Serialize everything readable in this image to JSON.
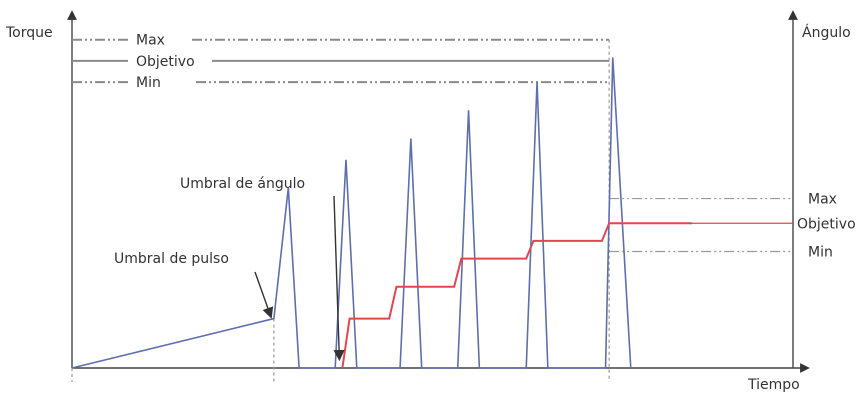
{
  "chart_data": {
    "type": "line",
    "title": "",
    "xlabel": "Tiempo",
    "ylabel_left": "Torque",
    "ylabel_right": "Ángulo",
    "axis_ranges": {
      "x": [
        0,
        100
      ],
      "y_left": [
        0,
        100
      ],
      "y_right": [
        0,
        100
      ]
    },
    "grid": false,
    "torque_levels": [
      {
        "label": "Max",
        "value": 93,
        "style": "dash-dot"
      },
      {
        "label": "Objetivo",
        "value": 87,
        "style": "solid"
      },
      {
        "label": "Min",
        "value": 81,
        "style": "dash-dot"
      }
    ],
    "angle_levels": [
      {
        "label": "Max",
        "value": 48,
        "style": "dash-dot"
      },
      {
        "label": "Objetivo",
        "value": 41,
        "style": "solid"
      },
      {
        "label": "Min",
        "value": 33,
        "style": "dash-dot"
      }
    ],
    "annotations": [
      {
        "text": "Umbral de pulso",
        "target_x": 28,
        "target_y": 14
      },
      {
        "text": "Umbral de ángulo",
        "target_x": 37.5,
        "target_y": 2
      }
    ],
    "series": [
      {
        "type": "torque",
        "color": "#5d6fad",
        "points": [
          [
            0,
            0
          ],
          [
            28,
            14
          ],
          [
            30,
            51
          ],
          [
            31.5,
            0
          ],
          [
            36.5,
            0
          ],
          [
            38,
            59
          ],
          [
            39.5,
            0
          ],
          [
            45.5,
            0
          ],
          [
            47,
            65
          ],
          [
            48.5,
            0
          ],
          [
            53.5,
            0
          ],
          [
            55,
            73
          ],
          [
            56.5,
            0
          ],
          [
            63,
            0
          ],
          [
            64.5,
            81
          ],
          [
            66,
            0
          ],
          [
            74,
            0
          ],
          [
            75,
            88
          ],
          [
            77.5,
            0
          ]
        ]
      },
      {
        "type": "angle",
        "color": "#e3464e",
        "points": [
          [
            37.5,
            0
          ],
          [
            38.5,
            14
          ],
          [
            44,
            14
          ],
          [
            45,
            23
          ],
          [
            53,
            23
          ],
          [
            54,
            31
          ],
          [
            63,
            31
          ],
          [
            64,
            36
          ],
          [
            73.5,
            36
          ],
          [
            74.5,
            41
          ],
          [
            86,
            41
          ]
        ]
      }
    ],
    "vertical_markers": [
      0,
      28,
      74.5
    ]
  }
}
